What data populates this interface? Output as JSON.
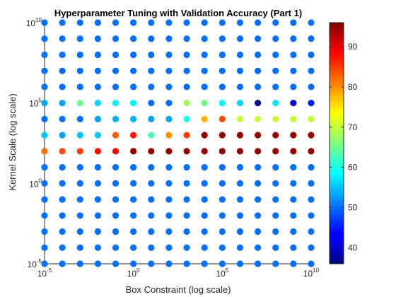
{
  "chart_data": {
    "type": "scatter",
    "title": "Hyperparameter Tuning with Validation Accuracy (Part 1)",
    "xlabel": "Box Constraint (log scale)",
    "ylabel": "Kernel Scale (log scale)",
    "xscale": "log",
    "yscale": "log",
    "xlim": [
      1e-05,
      10000000000.0
    ],
    "ylim": [
      1e-05,
      10000000000.0
    ],
    "x_ticks": [
      {
        "base": "10",
        "exp": "-5"
      },
      {
        "base": "10",
        "exp": "0"
      },
      {
        "base": "10",
        "exp": "5"
      },
      {
        "base": "10",
        "exp": "10"
      }
    ],
    "y_ticks": [
      {
        "base": "10",
        "exp": "-5"
      },
      {
        "base": "10",
        "exp": "0"
      },
      {
        "base": "10",
        "exp": "5"
      },
      {
        "base": "10",
        "exp": "10"
      }
    ],
    "grid": false,
    "colormap": "jet",
    "colorbar": {
      "min": 36,
      "max": 96,
      "ticks": [
        "40",
        "50",
        "60",
        "70",
        "80",
        "90"
      ],
      "tick_values": [
        40,
        50,
        60,
        70,
        80,
        90
      ]
    },
    "x_exponents": [
      -5,
      -4,
      -3,
      -2,
      -1,
      0,
      1,
      2,
      3,
      4,
      5,
      6,
      7,
      8,
      9,
      10
    ],
    "y_exponents": [
      10,
      9,
      8,
      7,
      6,
      5,
      4,
      3,
      2,
      1,
      0,
      -1,
      -2,
      -3,
      -4,
      -5
    ],
    "accuracy_rows": [
      [
        50,
        50,
        50,
        50,
        50,
        50,
        50,
        50,
        50,
        50,
        50,
        50,
        50,
        50,
        50,
        50
      ],
      [
        50,
        50,
        50,
        50,
        50,
        50,
        50,
        50,
        50,
        50,
        50,
        50,
        50,
        50,
        50,
        50
      ],
      [
        50,
        50,
        50,
        50,
        50,
        50,
        50,
        50,
        50,
        50,
        50,
        50,
        50,
        50,
        50,
        50
      ],
      [
        50,
        50,
        50,
        50,
        50,
        50,
        50,
        50,
        50,
        50,
        50,
        50,
        50,
        50,
        50,
        50
      ],
      [
        50,
        50,
        50,
        50,
        50,
        50,
        50,
        50,
        50,
        50,
        50,
        50,
        50,
        50,
        50,
        50
      ],
      [
        53,
        53,
        65,
        56,
        58,
        58,
        50,
        50,
        68,
        65,
        58,
        56,
        37,
        57,
        40,
        45
      ],
      [
        50,
        50,
        50,
        53,
        54,
        54,
        53,
        53,
        60,
        78,
        84,
        70,
        70,
        70,
        70,
        70
      ],
      [
        55,
        53,
        55,
        55,
        83,
        87,
        63,
        80,
        85,
        95,
        95,
        95,
        95,
        95,
        95,
        95
      ],
      [
        82,
        84,
        85,
        88,
        89,
        95,
        95,
        95,
        95,
        95,
        95,
        95,
        95,
        95,
        95,
        95
      ],
      [
        50,
        50,
        50,
        50,
        50,
        50,
        50,
        50,
        50,
        50,
        50,
        50,
        50,
        50,
        50,
        50
      ],
      [
        50,
        50,
        50,
        50,
        50,
        50,
        50,
        50,
        50,
        50,
        50,
        50,
        50,
        50,
        50,
        50
      ],
      [
        50,
        50,
        50,
        50,
        50,
        50,
        50,
        50,
        50,
        50,
        50,
        50,
        50,
        50,
        50,
        50
      ],
      [
        50,
        50,
        50,
        50,
        50,
        50,
        50,
        50,
        50,
        50,
        50,
        50,
        50,
        50,
        50,
        50
      ],
      [
        50,
        50,
        50,
        50,
        50,
        50,
        50,
        50,
        50,
        50,
        50,
        50,
        50,
        50,
        50,
        50
      ],
      [
        50,
        50,
        50,
        50,
        50,
        50,
        50,
        50,
        50,
        50,
        50,
        50,
        50,
        50,
        50,
        50
      ],
      [
        50,
        50,
        50,
        50,
        50,
        50,
        50,
        50,
        50,
        50,
        50,
        50,
        50,
        50,
        50,
        50
      ]
    ]
  }
}
